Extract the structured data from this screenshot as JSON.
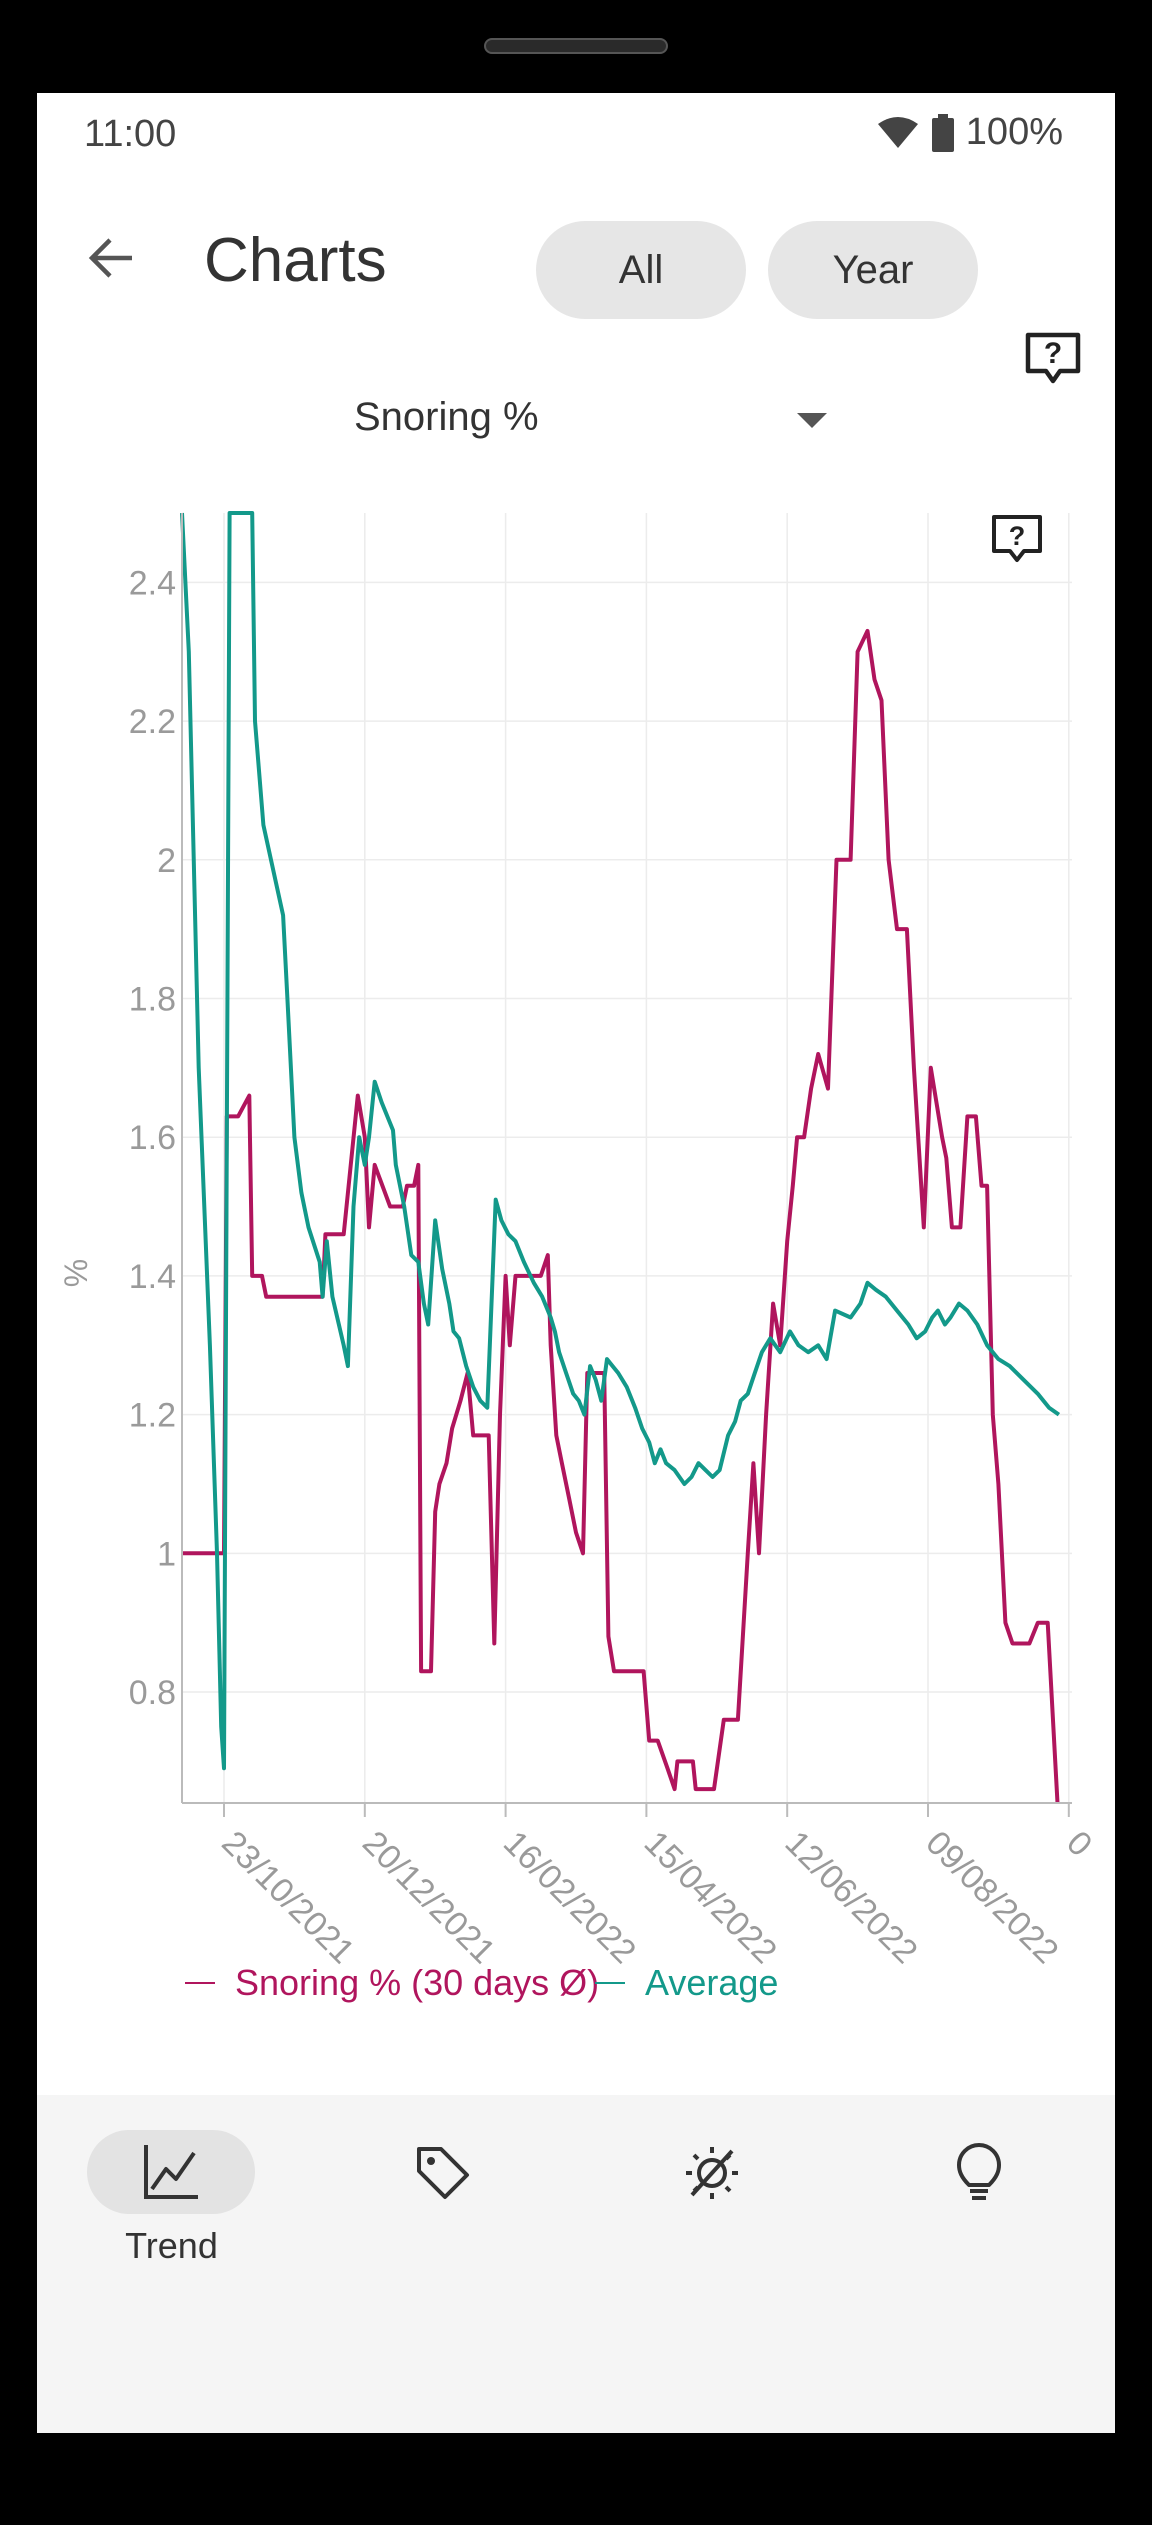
{
  "status": {
    "time": "11:00",
    "battery": "100%"
  },
  "appbar": {
    "title": "Charts",
    "chips": [
      "All",
      "Year"
    ],
    "back_icon": "arrow-back-icon",
    "help_icon": "help-bubble-icon"
  },
  "dropdown": {
    "selected": "Snoring %"
  },
  "chart_data": {
    "type": "line",
    "ylabel": "%",
    "ylim": [
      0.64,
      2.5
    ],
    "yticks": [
      "2.4",
      "2.2",
      "2",
      "1.8",
      "1.6",
      "1.4",
      "1.2",
      "1",
      "0.8"
    ],
    "yticks_values": [
      2.4,
      2.2,
      2.0,
      1.8,
      1.6,
      1.4,
      1.2,
      1.0,
      0.8
    ],
    "x_categories": [
      "23/10/2021",
      "20/12/2021",
      "16/02/2022",
      "15/04/2022",
      "12/06/2022",
      "09/08/2022",
      "0"
    ],
    "series": [
      {
        "name": "Snoring % (30 days Ø)",
        "color": "#b0155d",
        "values": [
          [
            -0.3,
            1.0
          ],
          [
            0.0,
            1.0
          ],
          [
            0.02,
            1.63
          ],
          [
            0.1,
            1.63
          ],
          [
            0.18,
            1.66
          ],
          [
            0.2,
            1.4
          ],
          [
            0.27,
            1.4
          ],
          [
            0.3,
            1.37
          ],
          [
            0.6,
            1.37
          ],
          [
            0.7,
            1.37
          ],
          [
            0.72,
            1.46
          ],
          [
            0.85,
            1.46
          ],
          [
            0.95,
            1.66
          ],
          [
            1.0,
            1.6
          ],
          [
            1.03,
            1.47
          ],
          [
            1.07,
            1.56
          ],
          [
            1.18,
            1.5
          ],
          [
            1.27,
            1.5
          ],
          [
            1.3,
            1.53
          ],
          [
            1.35,
            1.53
          ],
          [
            1.38,
            1.56
          ],
          [
            1.4,
            0.83
          ],
          [
            1.47,
            0.83
          ],
          [
            1.5,
            1.06
          ],
          [
            1.53,
            1.1
          ],
          [
            1.58,
            1.13
          ],
          [
            1.62,
            1.18
          ],
          [
            1.68,
            1.22
          ],
          [
            1.73,
            1.26
          ],
          [
            1.77,
            1.17
          ],
          [
            1.88,
            1.17
          ],
          [
            1.92,
            0.87
          ],
          [
            1.96,
            1.2
          ],
          [
            2.0,
            1.4
          ],
          [
            2.03,
            1.3
          ],
          [
            2.07,
            1.4
          ],
          [
            2.25,
            1.4
          ],
          [
            2.3,
            1.43
          ],
          [
            2.32,
            1.3
          ],
          [
            2.36,
            1.17
          ],
          [
            2.4,
            1.13
          ],
          [
            2.45,
            1.08
          ],
          [
            2.5,
            1.03
          ],
          [
            2.55,
            1.0
          ],
          [
            2.58,
            1.26
          ],
          [
            2.65,
            1.26
          ],
          [
            2.7,
            1.26
          ],
          [
            2.73,
            0.88
          ],
          [
            2.77,
            0.83
          ],
          [
            2.98,
            0.83
          ],
          [
            3.02,
            0.73
          ],
          [
            3.08,
            0.73
          ],
          [
            3.15,
            0.69
          ],
          [
            3.2,
            0.66
          ],
          [
            3.22,
            0.7
          ],
          [
            3.33,
            0.7
          ],
          [
            3.35,
            0.66
          ],
          [
            3.48,
            0.66
          ],
          [
            3.55,
            0.76
          ],
          [
            3.65,
            0.76
          ],
          [
            3.72,
            1.0
          ],
          [
            3.76,
            1.13
          ],
          [
            3.8,
            1.0
          ],
          [
            3.85,
            1.2
          ],
          [
            3.9,
            1.36
          ],
          [
            3.95,
            1.3
          ],
          [
            4.0,
            1.45
          ],
          [
            4.04,
            1.53
          ],
          [
            4.07,
            1.6
          ],
          [
            4.12,
            1.6
          ],
          [
            4.17,
            1.67
          ],
          [
            4.22,
            1.72
          ],
          [
            4.29,
            1.67
          ],
          [
            4.35,
            2.0
          ],
          [
            4.45,
            2.0
          ],
          [
            4.5,
            2.3
          ],
          [
            4.57,
            2.33
          ],
          [
            4.62,
            2.26
          ],
          [
            4.67,
            2.23
          ],
          [
            4.72,
            2.0
          ],
          [
            4.78,
            1.9
          ],
          [
            4.85,
            1.9
          ],
          [
            4.9,
            1.7
          ],
          [
            4.97,
            1.47
          ],
          [
            5.02,
            1.7
          ],
          [
            5.1,
            1.6
          ],
          [
            5.13,
            1.57
          ],
          [
            5.17,
            1.47
          ],
          [
            5.23,
            1.47
          ],
          [
            5.28,
            1.63
          ],
          [
            5.34,
            1.63
          ],
          [
            5.38,
            1.53
          ],
          [
            5.42,
            1.53
          ],
          [
            5.46,
            1.2
          ],
          [
            5.5,
            1.1
          ],
          [
            5.55,
            0.9
          ],
          [
            5.6,
            0.87
          ],
          [
            5.72,
            0.87
          ],
          [
            5.78,
            0.9
          ],
          [
            5.85,
            0.9
          ],
          [
            5.92,
            0.64
          ]
        ]
      },
      {
        "name": "Average",
        "color": "#13998a",
        "values": [
          [
            -0.3,
            2.5
          ],
          [
            -0.25,
            2.3
          ],
          [
            -0.18,
            1.7
          ],
          [
            -0.1,
            1.3
          ],
          [
            -0.05,
            1.0
          ],
          [
            -0.02,
            0.75
          ],
          [
            0.0,
            0.69
          ],
          [
            0.04,
            2.5
          ],
          [
            0.2,
            2.5
          ],
          [
            0.22,
            2.2
          ],
          [
            0.28,
            2.05
          ],
          [
            0.42,
            1.92
          ],
          [
            0.45,
            1.8
          ],
          [
            0.5,
            1.6
          ],
          [
            0.55,
            1.52
          ],
          [
            0.6,
            1.47
          ],
          [
            0.68,
            1.42
          ],
          [
            0.7,
            1.37
          ],
          [
            0.73,
            1.45
          ],
          [
            0.77,
            1.37
          ],
          [
            0.85,
            1.3
          ],
          [
            0.88,
            1.27
          ],
          [
            0.92,
            1.5
          ],
          [
            0.96,
            1.6
          ],
          [
            1.0,
            1.56
          ],
          [
            1.03,
            1.6
          ],
          [
            1.07,
            1.68
          ],
          [
            1.12,
            1.65
          ],
          [
            1.2,
            1.61
          ],
          [
            1.22,
            1.56
          ],
          [
            1.28,
            1.5
          ],
          [
            1.33,
            1.43
          ],
          [
            1.38,
            1.42
          ],
          [
            1.42,
            1.36
          ],
          [
            1.45,
            1.33
          ],
          [
            1.5,
            1.48
          ],
          [
            1.55,
            1.41
          ],
          [
            1.6,
            1.36
          ],
          [
            1.63,
            1.32
          ],
          [
            1.67,
            1.31
          ],
          [
            1.72,
            1.27
          ],
          [
            1.77,
            1.24
          ],
          [
            1.82,
            1.22
          ],
          [
            1.87,
            1.21
          ],
          [
            1.93,
            1.51
          ],
          [
            1.97,
            1.48
          ],
          [
            2.02,
            1.46
          ],
          [
            2.07,
            1.45
          ],
          [
            2.13,
            1.42
          ],
          [
            2.2,
            1.39
          ],
          [
            2.26,
            1.37
          ],
          [
            2.32,
            1.34
          ],
          [
            2.35,
            1.32
          ],
          [
            2.38,
            1.29
          ],
          [
            2.43,
            1.26
          ],
          [
            2.48,
            1.23
          ],
          [
            2.52,
            1.22
          ],
          [
            2.56,
            1.2
          ],
          [
            2.6,
            1.27
          ],
          [
            2.64,
            1.25
          ],
          [
            2.68,
            1.22
          ],
          [
            2.72,
            1.28
          ],
          [
            2.76,
            1.27
          ],
          [
            2.8,
            1.26
          ],
          [
            2.86,
            1.24
          ],
          [
            2.92,
            1.21
          ],
          [
            2.97,
            1.18
          ],
          [
            3.02,
            1.16
          ],
          [
            3.06,
            1.13
          ],
          [
            3.1,
            1.15
          ],
          [
            3.14,
            1.13
          ],
          [
            3.2,
            1.12
          ],
          [
            3.27,
            1.1
          ],
          [
            3.32,
            1.11
          ],
          [
            3.37,
            1.13
          ],
          [
            3.42,
            1.12
          ],
          [
            3.47,
            1.11
          ],
          [
            3.52,
            1.12
          ],
          [
            3.58,
            1.17
          ],
          [
            3.63,
            1.19
          ],
          [
            3.67,
            1.22
          ],
          [
            3.72,
            1.23
          ],
          [
            3.77,
            1.26
          ],
          [
            3.82,
            1.29
          ],
          [
            3.88,
            1.31
          ],
          [
            3.95,
            1.29
          ],
          [
            4.02,
            1.32
          ],
          [
            4.08,
            1.3
          ],
          [
            4.15,
            1.29
          ],
          [
            4.22,
            1.3
          ],
          [
            4.28,
            1.28
          ],
          [
            4.34,
            1.35
          ],
          [
            4.45,
            1.34
          ],
          [
            4.52,
            1.36
          ],
          [
            4.57,
            1.39
          ],
          [
            4.63,
            1.38
          ],
          [
            4.7,
            1.37
          ],
          [
            4.78,
            1.35
          ],
          [
            4.86,
            1.33
          ],
          [
            4.92,
            1.31
          ],
          [
            4.98,
            1.32
          ],
          [
            5.03,
            1.34
          ],
          [
            5.07,
            1.35
          ],
          [
            5.12,
            1.33
          ],
          [
            5.16,
            1.34
          ],
          [
            5.22,
            1.36
          ],
          [
            5.28,
            1.35
          ],
          [
            5.35,
            1.33
          ],
          [
            5.42,
            1.3
          ],
          [
            5.5,
            1.28
          ],
          [
            5.58,
            1.27
          ],
          [
            5.68,
            1.25
          ],
          [
            5.78,
            1.23
          ],
          [
            5.86,
            1.21
          ],
          [
            5.93,
            1.2
          ]
        ]
      }
    ],
    "legend": "bottom-left",
    "grid": true
  },
  "bottomnav": {
    "items": [
      {
        "icon": "trend-chart-icon",
        "label": "Trend",
        "active": true
      },
      {
        "icon": "tag-icon",
        "label": ""
      },
      {
        "icon": "sleep-settings-icon",
        "label": ""
      },
      {
        "icon": "lightbulb-icon",
        "label": ""
      }
    ]
  },
  "sysnav": {
    "icons": [
      "back-triangle-icon",
      "home-circle-icon",
      "recents-square-icon"
    ]
  }
}
